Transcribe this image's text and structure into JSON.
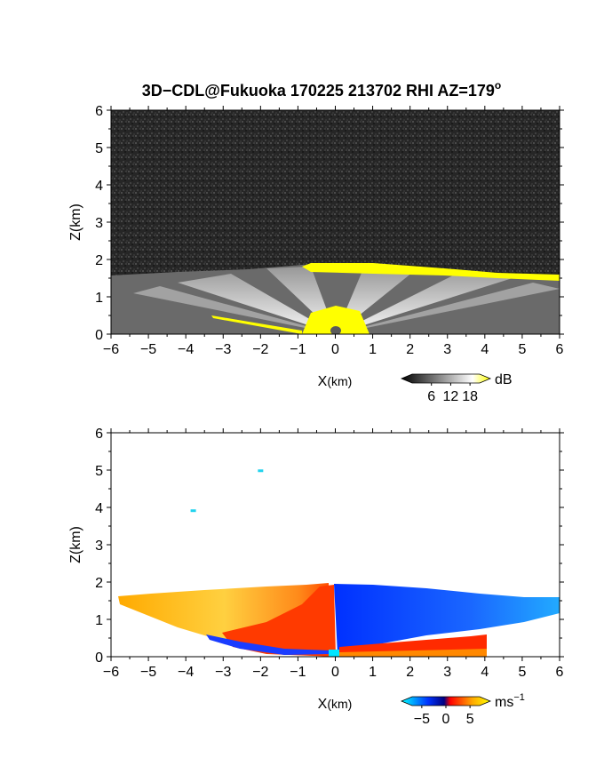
{
  "chart_data": [
    {
      "type": "heatmap",
      "title_main": "3D−CDL@Fukuoka 170225 213702 RHI AZ=179",
      "title_sup": "o",
      "xlabel_main": "X",
      "xlabel_unit": "(km)",
      "ylabel": "Z(km)",
      "xlim": [
        -6,
        6
      ],
      "ylim": [
        0,
        6
      ],
      "xticks": [
        "−6",
        "−5",
        "−4",
        "−3",
        "−2",
        "−1",
        "0",
        "1",
        "2",
        "3",
        "4",
        "5",
        "6"
      ],
      "yticks": [
        "0",
        "1",
        "2",
        "3",
        "4",
        "5",
        "6"
      ],
      "colorbar": {
        "unit": "dB",
        "ticks": [
          "6",
          "12",
          "18"
        ],
        "tick_values": [
          6,
          12,
          18
        ],
        "range": [
          0,
          21
        ],
        "colors": [
          "#000000",
          "#ffffff",
          "#ffff00"
        ],
        "saturation_color": "#ffff00"
      },
      "echo_top_km": [
        1.5,
        1.55,
        1.6,
        1.6,
        1.65,
        1.7,
        1.9,
        1.9,
        1.85,
        1.75,
        1.7,
        1.65,
        1.6
      ]
    },
    {
      "type": "heatmap",
      "xlabel_main": "X",
      "xlabel_unit": "(km)",
      "ylabel": "Z(km)",
      "xlim": [
        -6,
        6
      ],
      "ylim": [
        0,
        6
      ],
      "xticks": [
        "−6",
        "−5",
        "−4",
        "−3",
        "−2",
        "−1",
        "0",
        "1",
        "2",
        "3",
        "4",
        "5",
        "6"
      ],
      "yticks": [
        "0",
        "1",
        "2",
        "3",
        "4",
        "5",
        "6"
      ],
      "colorbar": {
        "unit_main": "ms",
        "unit_sup": "−1",
        "ticks": [
          "−5",
          "0",
          "5"
        ],
        "tick_values": [
          -5,
          0,
          5
        ],
        "range": [
          -7,
          7
        ],
        "colors": [
          "#00ffff",
          "#0033ff",
          "#000080",
          "#ff0000",
          "#ffaa00",
          "#ffff00"
        ]
      },
      "isolated_echoes": [
        {
          "x": -2.0,
          "z": 4.97
        },
        {
          "x": -3.8,
          "z": 3.9
        }
      ]
    }
  ]
}
